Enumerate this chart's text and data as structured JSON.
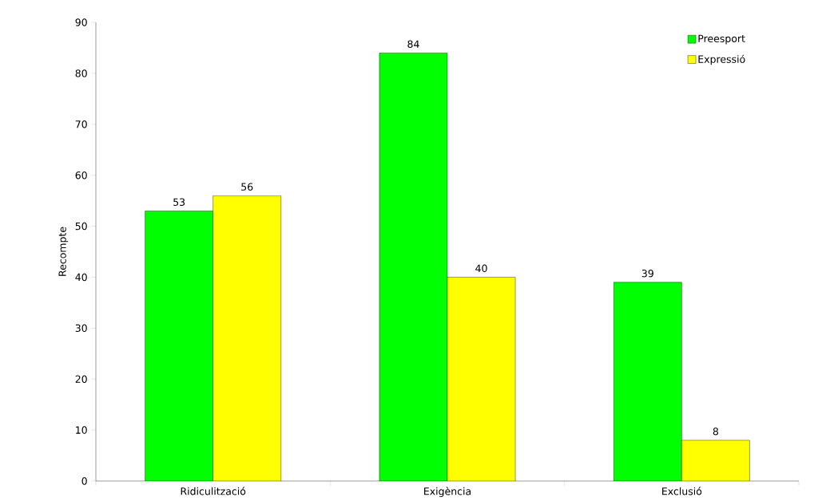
{
  "chart_data": {
    "type": "bar",
    "ylabel": "Recompte",
    "categories": [
      "Ridiculització",
      "Exigència",
      "Exclusió"
    ],
    "series": [
      {
        "name": "Preesport",
        "color": "#00ff00",
        "values": [
          53,
          84,
          39
        ]
      },
      {
        "name": "Expressió",
        "color": "#ffff00",
        "values": [
          56,
          40,
          8
        ]
      }
    ],
    "ylim": [
      0,
      90
    ],
    "yticks": [
      0,
      10,
      20,
      30,
      40,
      50,
      60,
      70,
      80,
      90
    ],
    "data_labels": true,
    "legend": "top right",
    "grid": false
  }
}
